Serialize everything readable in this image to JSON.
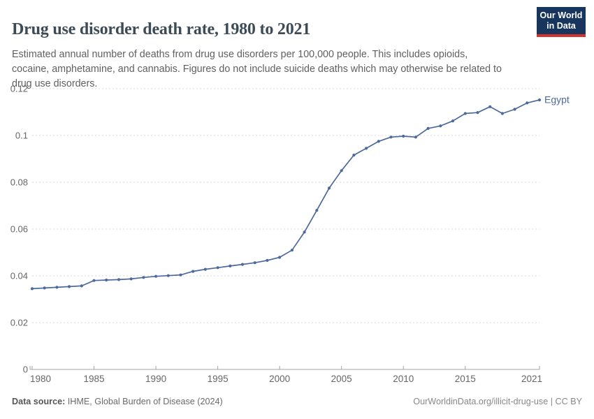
{
  "header": {
    "title": "Drug use disorder death rate, 1980 to 2021",
    "subtitle": "Estimated annual number of deaths from drug use disorders per 100,000 people. This includes opioids,\ncocaine, amphetamine, and cannabis. Figures do not include suicide deaths which may otherwise be related to\ndrug use disorders.",
    "logo": {
      "line1": "Our World",
      "line2": "in Data"
    }
  },
  "chart_data": {
    "type": "line",
    "title": "Drug use disorder death rate, 1980 to 2021",
    "xlabel": "",
    "ylabel": "",
    "xlim": [
      1980,
      2021
    ],
    "ylim": [
      0,
      0.12
    ],
    "grid": "horizontal-dashed",
    "legend_position": "end-of-line-label",
    "x_ticks": [
      {
        "value": 1980,
        "label": "1980"
      },
      {
        "value": 1985,
        "label": "1985"
      },
      {
        "value": 1990,
        "label": "1990"
      },
      {
        "value": 1995,
        "label": "1995"
      },
      {
        "value": 2000,
        "label": "2000"
      },
      {
        "value": 2005,
        "label": "2005"
      },
      {
        "value": 2010,
        "label": "2010"
      },
      {
        "value": 2015,
        "label": "2015"
      },
      {
        "value": 2021,
        "label": "2021"
      }
    ],
    "y_ticks": [
      {
        "value": 0,
        "label": "0"
      },
      {
        "value": 0.02,
        "label": "0.02"
      },
      {
        "value": 0.04,
        "label": "0.04"
      },
      {
        "value": 0.06,
        "label": "0.06"
      },
      {
        "value": 0.08,
        "label": "0.08"
      },
      {
        "value": 0.1,
        "label": "0.1"
      },
      {
        "value": 0.12,
        "label": "0.12"
      }
    ],
    "series": [
      {
        "name": "Egypt",
        "color": "#4c6a9c",
        "years": [
          1980,
          1981,
          1982,
          1983,
          1984,
          1985,
          1986,
          1987,
          1988,
          1989,
          1990,
          1991,
          1992,
          1993,
          1994,
          1995,
          1996,
          1997,
          1998,
          1999,
          2000,
          2001,
          2002,
          2003,
          2004,
          2005,
          2006,
          2007,
          2008,
          2009,
          2010,
          2011,
          2012,
          2013,
          2014,
          2015,
          2016,
          2017,
          2018,
          2019,
          2020,
          2021
        ],
        "values": [
          0.0345,
          0.0348,
          0.0351,
          0.0354,
          0.0357,
          0.038,
          0.0382,
          0.0384,
          0.0387,
          0.0393,
          0.0398,
          0.0401,
          0.0404,
          0.0419,
          0.0428,
          0.0435,
          0.0442,
          0.0449,
          0.0456,
          0.0466,
          0.0479,
          0.051,
          0.0587,
          0.068,
          0.0775,
          0.085,
          0.0916,
          0.0945,
          0.0975,
          0.0993,
          0.0997,
          0.0993,
          0.103,
          0.1041,
          0.1062,
          0.1094,
          0.1098,
          0.1123,
          0.1094,
          0.1112,
          0.1139,
          0.1152
        ]
      }
    ]
  },
  "colors": {
    "accent_blue": "#4c6a9c",
    "grid": "#dadada",
    "axis": "#a5a5a5",
    "tick_text": "#666666",
    "logo_bg": "#18365d",
    "logo_red": "#d0342f"
  },
  "footer": {
    "source_label": "Data source:",
    "source_value": " IHME, Global Burden of Disease (2024)",
    "link": "OurWorldinData.org/illicit-drug-use | CC BY"
  }
}
